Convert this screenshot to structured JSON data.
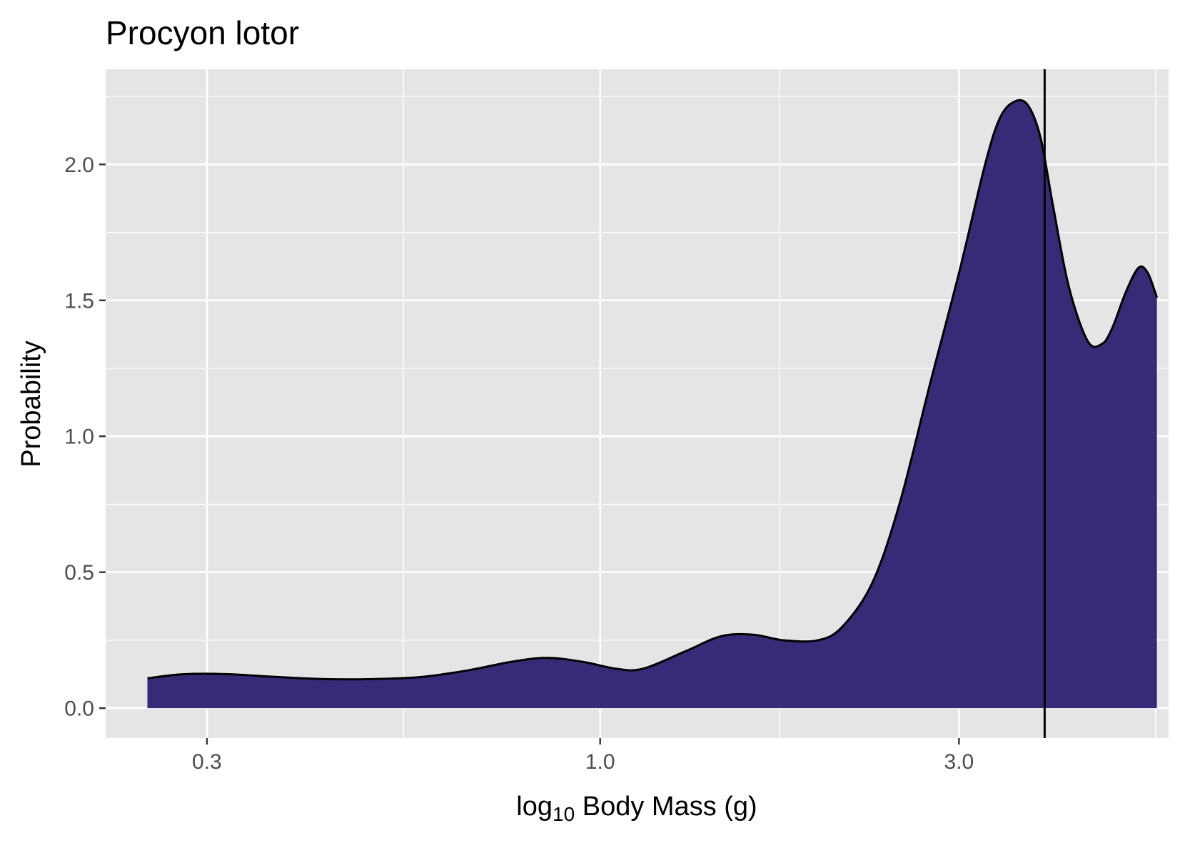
{
  "chart_data": {
    "type": "area",
    "title": "Procyon lotor",
    "xlabel_parts": {
      "base": "log",
      "subscript": "10",
      "rest": " Body Mass (g)"
    },
    "ylabel": "Probability",
    "x_scale": "log10",
    "xlim": [
      0.22,
      5.7
    ],
    "ylim": [
      -0.11,
      2.35
    ],
    "x_ticks": [
      0.3,
      1.0,
      3.0
    ],
    "x_tick_labels": [
      "0.3",
      "1.0",
      "3.0"
    ],
    "y_ticks": [
      0.0,
      0.5,
      1.0,
      1.5,
      2.0
    ],
    "y_tick_labels": [
      "0.0",
      "0.5",
      "1.0",
      "1.5",
      "2.0"
    ],
    "grid": true,
    "panel_color": "#e5e5e5",
    "fill_color": "#382a77",
    "line_color": "#000000",
    "vline_x": 3.9,
    "series": [
      {
        "x": [
          0.25,
          0.28,
          0.32,
          0.37,
          0.43,
          0.5,
          0.58,
          0.67,
          0.76,
          0.85,
          0.95,
          1.05,
          1.14,
          1.3,
          1.45,
          1.6,
          1.75,
          1.95,
          2.1,
          2.3,
          2.5,
          2.75,
          3.0,
          3.25,
          3.4,
          3.55,
          3.7,
          3.85,
          4.0,
          4.2,
          4.45,
          4.65,
          4.8,
          5.0,
          5.2,
          5.35,
          5.5
        ],
        "y": [
          0.11,
          0.125,
          0.125,
          0.115,
          0.107,
          0.107,
          0.115,
          0.14,
          0.17,
          0.185,
          0.17,
          0.145,
          0.145,
          0.21,
          0.265,
          0.27,
          0.25,
          0.25,
          0.3,
          0.46,
          0.75,
          1.2,
          1.6,
          2.0,
          2.17,
          2.23,
          2.22,
          2.1,
          1.85,
          1.55,
          1.35,
          1.34,
          1.4,
          1.53,
          1.62,
          1.6,
          1.51
        ]
      }
    ]
  }
}
